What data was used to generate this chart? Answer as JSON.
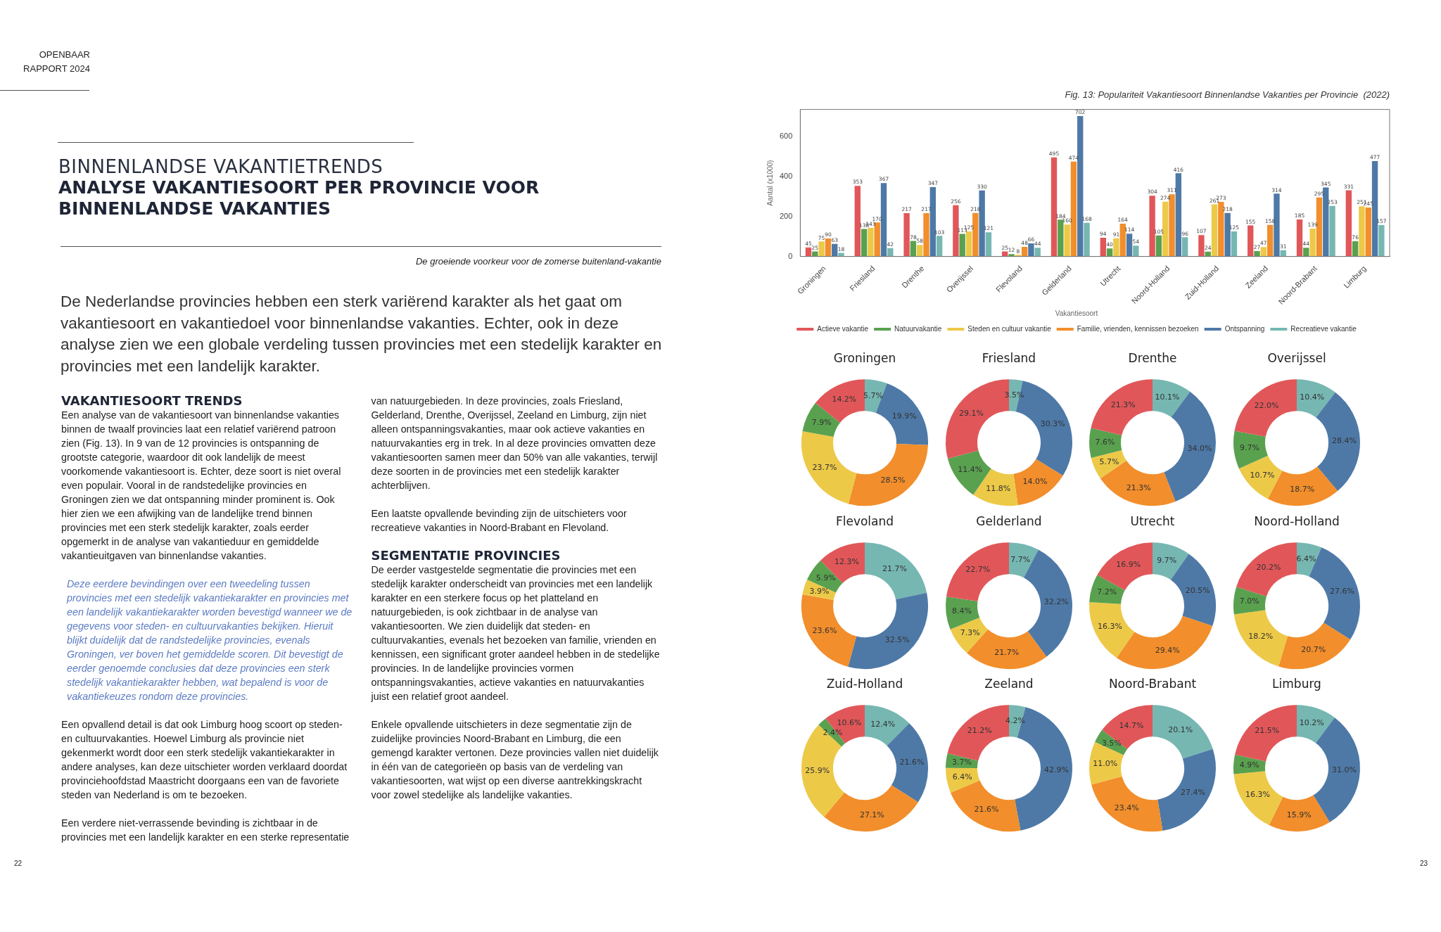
{
  "chart_data": [
    {
      "type": "other",
      "title": "BINNENLANDSE VAKANTIETRENDS",
      "subtitle": "ANALYSE VAKANTIESOORT PER PROVINCIE VOOR BINNENLANDSE VAKANTIES",
      "annotations": [
        "OPENBAAR",
        "RAPPORT 2024",
        "De groeiende voorkeur voor de zomerse buitenland-vakantie",
        "De Nederlandse provincies hebben een sterk variërend karakter als het gaat om vakantiesoort en vakantiedoel voor binnenlandse vakanties. Echter, ook in deze analyse zien we een globale verdeling tussen provincies met een stedelijk karakter en provincies met een landelijk karakter.",
        "VAKANTIESOORT TRENDS",
        "Een analyse van de vakantiesoort van binnenlandse vakanties binnen de twaalf provincies laat een relatief variërend patroon zien (Fig. 13). In 9 van de 12 provincies is ontspanning de grootste categorie, waardoor dit ook landelijk de meest voorkomende vakantiesoort is. Echter, deze soort is niet overal even populair. Vooral in de randstedelijke provincies en Groningen zien we dat ontspanning minder prominent is. Ook hier zien we een afwijking van de landelijke trend binnen provincies met een sterk stedelijk karakter, zoals eerder opgemerkt in de analyse van vakantieduur en gemiddelde vakantieuitgaven van binnenlandse vakanties.",
        "Deze eerdere bevindingen over een tweedeling tussen provincies met een stedelijk vakantiekarakter en provincies met een landelijk vakantiekarakter worden bevestigd wanneer we de gegevens voor steden- en cultuurvakanties bekijken. Hieruit blijkt duidelijk dat de randstedelijke provincies, evenals Groningen, ver boven het gemiddelde scoren. Dit bevestigt de eerder genoemde conclusies dat deze provincies een sterk stedelijk vakantiekarakter hebben, wat bepalend is voor de vakantiekeuzes rondom deze provincies.",
        "Een opvallend detail is dat ook Limburg hoog scoort op steden- en cultuurvakanties. Hoewel Limburg als provincie niet gekenmerkt wordt door een sterk stedelijk vakantiekarakter in andere analyses, kan deze uitschieter worden verklaard doordat provinciehoofdstad Maastricht doorgaans een van de favoriete steden van Nederland is om te bezoeken.",
        "Een verdere niet-verrassende bevinding is zichtbaar in de provincies met een landelijk karakter en een sterke representatie van natuurgebieden. In deze provincies, zoals Friesland, Gelderland, Drenthe, Overijssel, Zeeland en Limburg, zijn niet alleen ontspanningsvakanties, maar ook actieve vakanties en natuurvakanties erg in trek. In al deze provincies omvatten deze vakantiesoorten samen meer dan 50% van alle vakanties, terwijl deze soorten in de provincies met een stedelijk karakter achterblijven.",
        "Een laatste opvallende bevinding zijn de uitschieters voor recreatieve vakanties in Noord-Brabant en Flevoland.",
        "SEGMENTATIE PROVINCIES",
        "De eerder vastgestelde segmentatie die provincies met een stedelijk karakter onderscheidt van provincies met een landelijk karakter en een sterkere focus op het platteland en natuurgebieden, is ook zichtbaar in de analyse van vakantiesoorten. We zien duidelijk dat steden- en cultuurvakanties, evenals het bezoeken van familie, vrienden en kennissen, een significant groter aandeel hebben in de stedelijke provincies. In de landelijke provincies vormen ontspanningsvakanties, actieve vakanties en natuurvakanties juist een relatief groot aandeel.",
        "Enkele opvallende uitschieters in deze segmentatie zijn de zuidelijke provincies Noord-Brabant en Limburg, die een gemengd karakter vertonen. Deze provincies vallen niet duidelijk in één van de categorieën op basis van de verdeling van vakantiesoorten, wat wijst op een diverse aantrekkingskracht voor zowel stedelijke als landelijke vakanties.",
        "22",
        "23"
      ]
    },
    {
      "type": "bar",
      "title": "Fig. 13: Populariteit Vakantiesoort Binnenlandse Vakanties per Provincie  (2022)",
      "ylabel": "Aantal (x1000)",
      "legend_title": "Vakantiesoort",
      "legend": "bottom",
      "data_labels": true,
      "ylim": [
        0,
        735
      ],
      "yticks": [
        0,
        200,
        400,
        600
      ],
      "categories": [
        "Groningen",
        "Friesland",
        "Drenthe",
        "Overijssel",
        "Flevoland",
        "Gelderland",
        "Utrecht",
        "Noord-Holland",
        "Zuid-Holland",
        "Zeeland",
        "Noord-Brabant",
        "Limburg"
      ],
      "series": [
        {
          "name": "Actieve vakantie",
          "color": "#e15759",
          "values": [
            45,
            353,
            217,
            256,
            25,
            495,
            94,
            304,
            107,
            155,
            185,
            331
          ]
        },
        {
          "name": "Natuurvakantie",
          "color": "#59a14f",
          "values": [
            25,
            138,
            78,
            113,
            12,
            184,
            40,
            105,
            24,
            27,
            44,
            76
          ]
        },
        {
          "name": "Steden en cultuur vakantie",
          "color": "#edc948",
          "values": [
            75,
            143,
            58,
            125,
            8,
            160,
            91,
            274,
            261,
            47,
            139,
            251
          ]
        },
        {
          "name": "Familie, vrienden, kennissen bezoeken",
          "color": "#f28e2b",
          "values": [
            90,
            170,
            217,
            218,
            48,
            474,
            164,
            311,
            273,
            158,
            295,
            245
          ]
        },
        {
          "name": "Ontspanning",
          "color": "#4e79a7",
          "values": [
            63,
            367,
            347,
            330,
            66,
            702,
            114,
            416,
            218,
            314,
            345,
            477
          ]
        },
        {
          "name": "Recreatieve vakantie",
          "color": "#76b7b2",
          "values": [
            18,
            42,
            103,
            121,
            44,
            168,
            54,
            96,
            125,
            31,
            253,
            157
          ]
        }
      ]
    },
    {
      "type": "donut",
      "title": "Groningen",
      "categories": [
        null,
        null,
        null,
        null,
        null,
        null
      ],
      "colors": [
        "#76b7b2",
        "#4e79a7",
        "#f28e2b",
        "#edc948",
        "#59a14f",
        "#e15759"
      ],
      "values": [
        5.7,
        19.9,
        28.5,
        23.7,
        7.9,
        14.2
      ],
      "value_labels": [
        "5.7%",
        "19.9%",
        "28.5%",
        "23.7%",
        "7.9%",
        "14.2%"
      ]
    },
    {
      "type": "donut",
      "title": "Friesland",
      "categories": [
        null,
        null,
        null,
        null,
        null,
        null
      ],
      "colors": [
        "#76b7b2",
        "#4e79a7",
        "#f28e2b",
        "#edc948",
        "#59a14f",
        "#e15759"
      ],
      "values": [
        3.5,
        30.3,
        14.0,
        11.8,
        11.4,
        29.1
      ],
      "value_labels": [
        "3.5%",
        "30.3%",
        "14.0%",
        "11.8%",
        "11.4%",
        "29.1%"
      ]
    },
    {
      "type": "donut",
      "title": "Drenthe",
      "categories": [
        null,
        null,
        null,
        null,
        null,
        null
      ],
      "colors": [
        "#76b7b2",
        "#4e79a7",
        "#f28e2b",
        "#edc948",
        "#59a14f",
        "#e15759"
      ],
      "values": [
        10.1,
        34.0,
        21.3,
        5.7,
        7.6,
        21.3
      ],
      "value_labels": [
        "10.1%",
        "34.0%",
        "21.3%",
        "5.7%",
        "7.6%",
        "21.3%"
      ]
    },
    {
      "type": "donut",
      "title": "Overijssel",
      "categories": [
        null,
        null,
        null,
        null,
        null,
        null
      ],
      "colors": [
        "#76b7b2",
        "#4e79a7",
        "#f28e2b",
        "#edc948",
        "#59a14f",
        "#e15759"
      ],
      "values": [
        10.4,
        28.4,
        18.7,
        10.7,
        9.7,
        22.0
      ],
      "value_labels": [
        "10.4%",
        "28.4%",
        "18.7%",
        "10.7%",
        "9.7%",
        "22.0%"
      ]
    },
    {
      "type": "donut",
      "title": "Flevoland",
      "categories": [
        null,
        null,
        null,
        null,
        null,
        null
      ],
      "colors": [
        "#76b7b2",
        "#4e79a7",
        "#f28e2b",
        "#edc948",
        "#59a14f",
        "#e15759"
      ],
      "values": [
        21.7,
        32.5,
        23.6,
        3.9,
        5.9,
        12.3
      ],
      "value_labels": [
        "21.7%",
        "32.5%",
        "23.6%",
        "3.9%",
        "5.9%",
        "12.3%"
      ]
    },
    {
      "type": "donut",
      "title": "Gelderland",
      "categories": [
        null,
        null,
        null,
        null,
        null,
        null
      ],
      "colors": [
        "#76b7b2",
        "#4e79a7",
        "#f28e2b",
        "#edc948",
        "#59a14f",
        "#e15759"
      ],
      "values": [
        7.7,
        32.2,
        21.7,
        7.3,
        8.4,
        22.7
      ],
      "value_labels": [
        "7.7%",
        "32.2%",
        "21.7%",
        "7.3%",
        "8.4%",
        "22.7%"
      ]
    },
    {
      "type": "donut",
      "title": "Utrecht",
      "categories": [
        null,
        null,
        null,
        null,
        null,
        null
      ],
      "colors": [
        "#76b7b2",
        "#4e79a7",
        "#f28e2b",
        "#edc948",
        "#59a14f",
        "#e15759"
      ],
      "values": [
        9.7,
        20.5,
        29.4,
        16.3,
        7.2,
        16.9
      ],
      "value_labels": [
        "9.7%",
        "20.5%",
        "29.4%",
        "16.3%",
        "7.2%",
        "16.9%"
      ]
    },
    {
      "type": "donut",
      "title": "Noord-Holland",
      "categories": [
        null,
        null,
        null,
        null,
        null,
        null
      ],
      "colors": [
        "#76b7b2",
        "#4e79a7",
        "#f28e2b",
        "#edc948",
        "#59a14f",
        "#e15759"
      ],
      "values": [
        6.4,
        27.6,
        20.7,
        18.2,
        7.0,
        20.2
      ],
      "value_labels": [
        "6.4%",
        "27.6%",
        "20.7%",
        "18.2%",
        "7.0%",
        "20.2%"
      ]
    },
    {
      "type": "donut",
      "title": "Zuid-Holland",
      "categories": [
        null,
        null,
        null,
        null,
        null,
        null
      ],
      "colors": [
        "#76b7b2",
        "#4e79a7",
        "#f28e2b",
        "#edc948",
        "#59a14f",
        "#e15759"
      ],
      "values": [
        12.4,
        21.6,
        27.1,
        25.9,
        2.4,
        10.6
      ],
      "value_labels": [
        "12.4%",
        "21.6%",
        "27.1%",
        "25.9%",
        "2.4%",
        "10.6%"
      ]
    },
    {
      "type": "donut",
      "title": "Zeeland",
      "categories": [
        null,
        null,
        null,
        null,
        null,
        null
      ],
      "colors": [
        "#76b7b2",
        "#4e79a7",
        "#f28e2b",
        "#edc948",
        "#59a14f",
        "#e15759"
      ],
      "values": [
        4.2,
        42.9,
        21.6,
        6.4,
        3.7,
        21.2
      ],
      "value_labels": [
        "4.2%",
        "42.9%",
        "21.6%",
        "6.4%",
        "3.7%",
        "21.2%"
      ]
    },
    {
      "type": "donut",
      "title": "Noord-Brabant",
      "categories": [
        null,
        null,
        null,
        null,
        null,
        null
      ],
      "colors": [
        "#76b7b2",
        "#4e79a7",
        "#f28e2b",
        "#edc948",
        "#59a14f",
        "#e15759"
      ],
      "values": [
        20.1,
        27.4,
        23.4,
        11.0,
        3.5,
        14.7
      ],
      "value_labels": [
        "20.1%",
        "27.4%",
        "23.4%",
        "11.0%",
        "3.5%",
        "14.7%"
      ]
    },
    {
      "type": "donut",
      "title": "Limburg",
      "categories": [
        null,
        null,
        null,
        null,
        null,
        null
      ],
      "colors": [
        "#76b7b2",
        "#4e79a7",
        "#f28e2b",
        "#edc948",
        "#59a14f",
        "#e15759"
      ],
      "values": [
        10.2,
        31.0,
        15.9,
        16.3,
        4.9,
        21.5
      ],
      "value_labels": [
        "10.2%",
        "31.0%",
        "15.9%",
        "16.3%",
        "4.9%",
        "21.5%"
      ]
    }
  ]
}
